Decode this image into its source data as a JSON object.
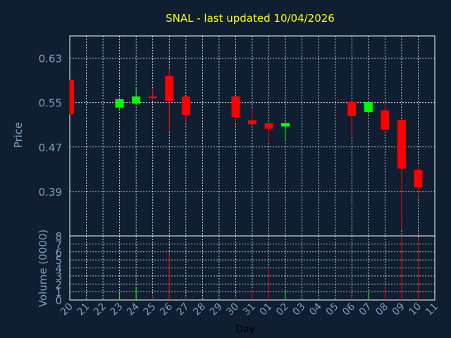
{
  "chart_data": {
    "type": "candlestick",
    "title": "SNAL - last updated 10/04/2026",
    "xlabel": "Day",
    "ylabel": "Price",
    "volume_label": "Volume (0000)",
    "grid": true,
    "colors": {
      "background": "#0f1e30",
      "title": "#ffff00",
      "axis_text": "#7f9fc0",
      "grid": "#ffffff",
      "up": "#00ff00",
      "down": "#ff0000"
    },
    "price_axis": {
      "ylim": [
        0.31,
        0.67
      ],
      "ticks": [
        0.39,
        0.47,
        0.55,
        0.63
      ],
      "tick_labels": [
        "0.39",
        "0.47",
        "0.55",
        "0.63"
      ]
    },
    "volume_axis": {
      "ylim": [
        0,
        8
      ],
      "ticks": [
        0,
        1,
        2,
        3,
        4,
        5,
        6,
        7,
        8
      ],
      "tick_labels": [
        "0",
        "1",
        "2",
        "3",
        "4",
        "5",
        "6",
        "7",
        "8"
      ]
    },
    "x_ticks": [
      "20",
      "21",
      "22",
      "23",
      "24",
      "25",
      "26",
      "27",
      "28",
      "29",
      "30",
      "31",
      "01",
      "02",
      "03",
      "04",
      "05",
      "06",
      "07",
      "08",
      "09",
      "10",
      "11"
    ],
    "candles": [
      {
        "day": "20",
        "open": 0.591,
        "high": 0.591,
        "low": 0.529,
        "close": 0.529,
        "volume": 0.0
      },
      {
        "day": "23",
        "open": 0.541,
        "high": 0.559,
        "low": 0.536,
        "close": 0.556,
        "volume": 0.8
      },
      {
        "day": "24",
        "open": 0.548,
        "high": 0.578,
        "low": 0.546,
        "close": 0.561,
        "volume": 1.7
      },
      {
        "day": "25",
        "open": 0.561,
        "high": 0.576,
        "low": 0.556,
        "close": 0.558,
        "volume": 0.6
      },
      {
        "day": "26",
        "open": 0.598,
        "high": 0.611,
        "low": 0.498,
        "close": 0.553,
        "volume": 6.0
      },
      {
        "day": "27",
        "open": 0.561,
        "high": 0.561,
        "low": 0.514,
        "close": 0.528,
        "volume": 0.3
      },
      {
        "day": "30",
        "open": 0.561,
        "high": 0.561,
        "low": 0.514,
        "close": 0.524,
        "volume": 0.3
      },
      {
        "day": "31",
        "open": 0.518,
        "high": 0.541,
        "low": 0.511,
        "close": 0.511,
        "volume": 1.3
      },
      {
        "day": "01",
        "open": 0.513,
        "high": 0.513,
        "low": 0.478,
        "close": 0.503,
        "volume": 4.1
      },
      {
        "day": "02",
        "open": 0.507,
        "high": 0.514,
        "low": 0.481,
        "close": 0.513,
        "volume": 1.2
      },
      {
        "day": "06",
        "open": 0.551,
        "high": 0.551,
        "low": 0.489,
        "close": 0.526,
        "volume": 0.5
      },
      {
        "day": "07",
        "open": 0.533,
        "high": 0.551,
        "low": 0.529,
        "close": 0.551,
        "volume": 0.9
      },
      {
        "day": "08",
        "open": 0.536,
        "high": 0.549,
        "low": 0.501,
        "close": 0.501,
        "volume": 1.6
      },
      {
        "day": "09",
        "open": 0.519,
        "high": 0.519,
        "low": 0.322,
        "close": 0.431,
        "volume": 8.2
      },
      {
        "day": "10",
        "open": 0.429,
        "high": 0.437,
        "low": 0.379,
        "close": 0.397,
        "volume": 7.8
      }
    ]
  }
}
